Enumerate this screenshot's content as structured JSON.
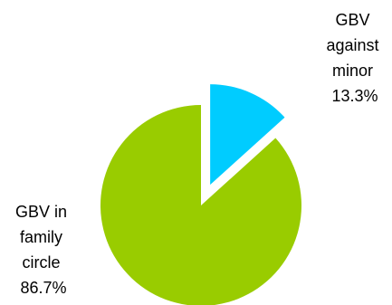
{
  "chart_data": {
    "type": "pie",
    "exploded_slice": "GBV against minor",
    "start_angle_note": "first slice begins at 12 o'clock, clockwise",
    "slices": [
      {
        "name": "GBV against minor",
        "value": 13.3,
        "label_lines": [
          "GBV",
          "against",
          "minor",
          "13.3%"
        ],
        "color": "#00ccff"
      },
      {
        "name": "GBV in family circle",
        "value": 86.7,
        "label_lines": [
          "GBV in",
          "family",
          "circle",
          "86.7%"
        ],
        "color": "#99cc00"
      }
    ]
  }
}
